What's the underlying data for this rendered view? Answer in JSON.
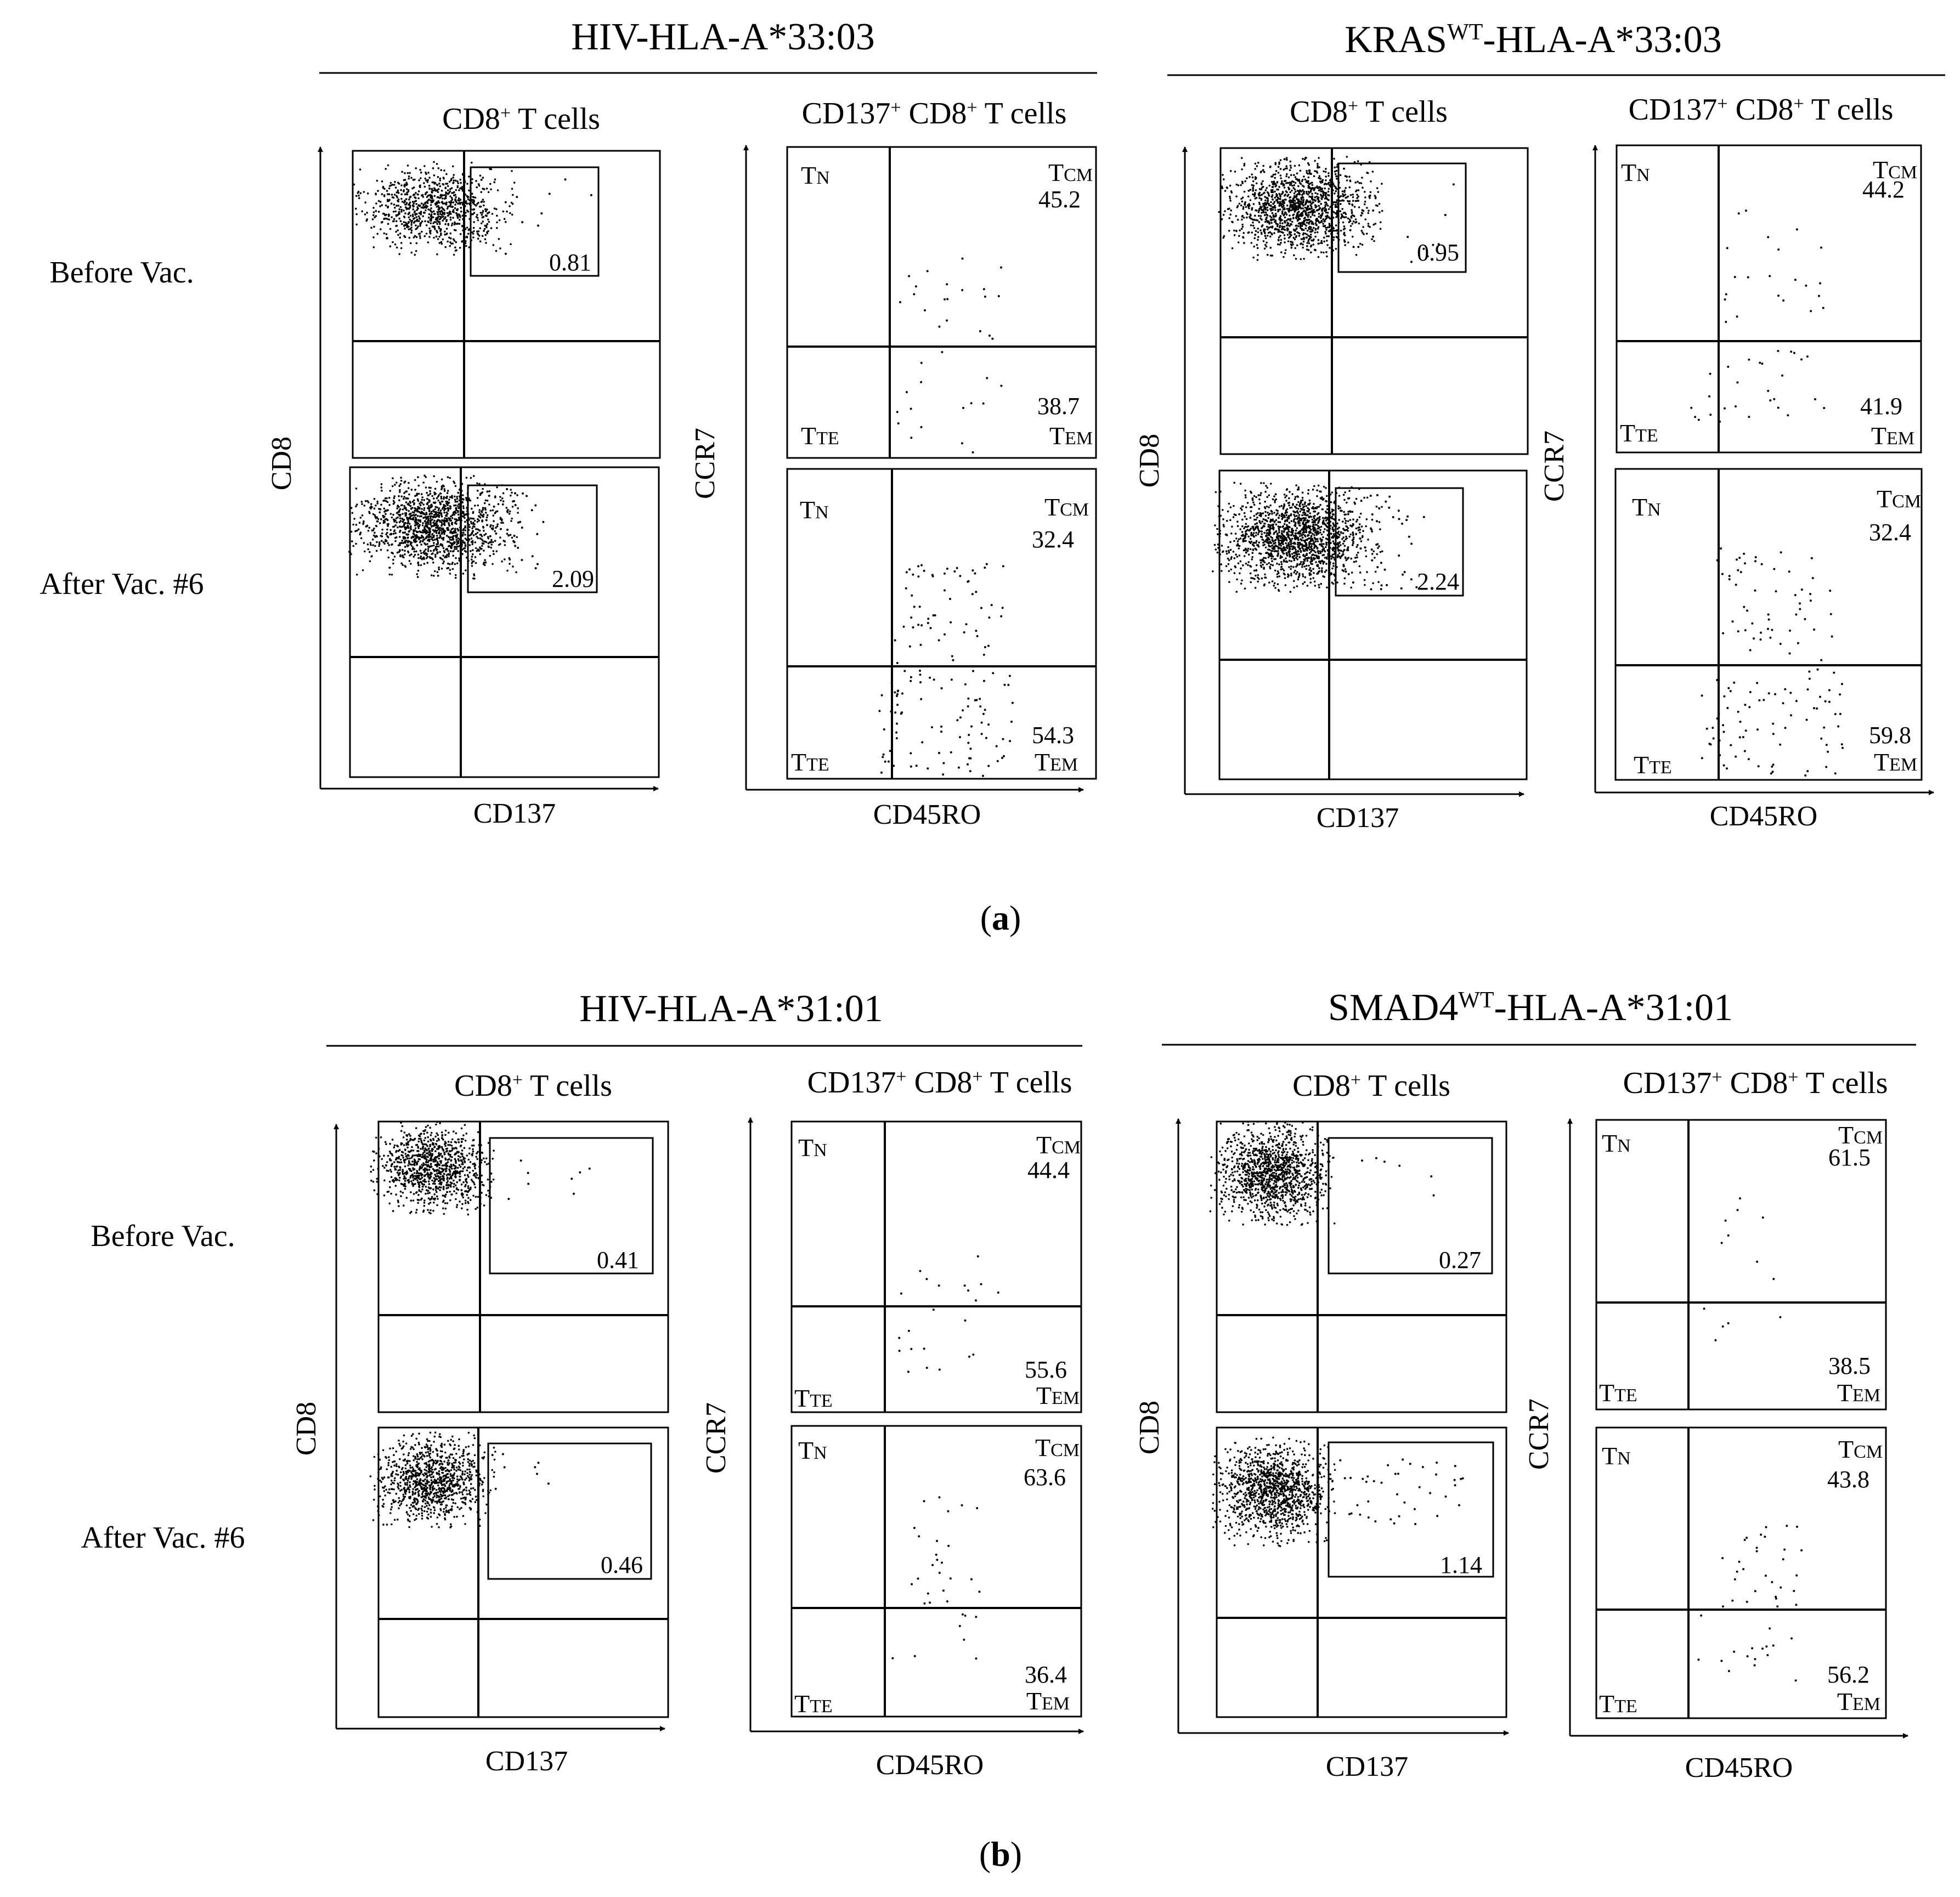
{
  "figure": {
    "captions": {
      "a": "a",
      "b": "b"
    }
  },
  "row_labels": [
    "Before Vac.",
    "After Vac. #6"
  ],
  "chart_data": [
    {
      "panel": "a",
      "type": "scatter",
      "title": "HIV-HLA-A*33:03",
      "left_title": {
        "main": "CD8",
        "sup": "+",
        "rest": " T cells"
      },
      "right_title": {
        "a": "CD137",
        "s1": "+",
        "b": " CD8",
        "s2": "+",
        "c": " T cells"
      },
      "left_xlabel": "CD137",
      "left_ylabel": "CD8",
      "right_xlabel": "CD45RO",
      "right_ylabel": "CCR7",
      "rows": [
        {
          "label": "Before Vac.",
          "gate_value": "0.81",
          "tcm_value": "45.2",
          "tem_value": "38.7"
        },
        {
          "label": "After Vac. #6",
          "gate_value": "2.09",
          "tcm_value": "32.4",
          "tem_value": "54.3"
        }
      ],
      "quadrant_labels": {
        "tn": [
          "T",
          "N"
        ],
        "tcm": [
          "T",
          "CM"
        ],
        "tte": [
          "T",
          "TE"
        ],
        "tem": [
          "T",
          "EM"
        ]
      }
    },
    {
      "panel": "a",
      "type": "scatter",
      "title": {
        "a": "KRAS",
        "sup": "WT",
        "b": "-HLA-A*33:03"
      },
      "left_title": {
        "main": "CD8",
        "sup": "+",
        "rest": " T cells"
      },
      "right_title": {
        "a": "CD137",
        "s1": "+",
        "b": " CD8",
        "s2": "+",
        "c": " T cells"
      },
      "left_xlabel": "CD137",
      "left_ylabel": "CD8",
      "right_xlabel": "CD45RO",
      "right_ylabel": "CCR7",
      "rows": [
        {
          "label": "Before Vac.",
          "gate_value": "0.95",
          "tcm_value": "44.2",
          "tem_value": "41.9"
        },
        {
          "label": "After Vac. #6",
          "gate_value": "2.24",
          "tcm_value": "32.4",
          "tem_value": "59.8"
        }
      ],
      "quadrant_labels": {
        "tn": [
          "T",
          "N"
        ],
        "tcm": [
          "T",
          "CM"
        ],
        "tte": [
          "T",
          "TE"
        ],
        "tem": [
          "T",
          "EM"
        ]
      }
    },
    {
      "panel": "b",
      "type": "scatter",
      "title": "HIV-HLA-A*31:01",
      "left_title": {
        "main": "CD8",
        "sup": "+",
        "rest": " T cells"
      },
      "right_title": {
        "a": "CD137",
        "s1": "+",
        "b": " CD8",
        "s2": "+",
        "c": " T cells"
      },
      "left_xlabel": "CD137",
      "left_ylabel": "CD8",
      "right_xlabel": "CD45RO",
      "right_ylabel": "CCR7",
      "rows": [
        {
          "label": "Before Vac.",
          "gate_value": "0.41",
          "tcm_value": "44.4",
          "tem_value": "55.6"
        },
        {
          "label": "After Vac. #6",
          "gate_value": "0.46",
          "tcm_value": "63.6",
          "tem_value": "36.4"
        }
      ],
      "quadrant_labels": {
        "tn": [
          "T",
          "N"
        ],
        "tcm": [
          "T",
          "CM"
        ],
        "tte": [
          "T",
          "TE"
        ],
        "tem": [
          "T",
          "EM"
        ]
      }
    },
    {
      "panel": "b",
      "type": "scatter",
      "title": {
        "a": "SMAD4",
        "sup": "WT",
        "b": "-HLA-A*31:01"
      },
      "left_title": {
        "main": "CD8",
        "sup": "+",
        "rest": " T cells"
      },
      "right_title": {
        "a": "CD137",
        "s1": "+",
        "b": " CD8",
        "s2": "+",
        "c": " T cells"
      },
      "left_xlabel": "CD137",
      "left_ylabel": "CD8",
      "right_xlabel": "CD45RO",
      "right_ylabel": "CCR7",
      "rows": [
        {
          "label": "Before Vac.",
          "gate_value": "0.27",
          "tcm_value": "61.5",
          "tem_value": "38.5"
        },
        {
          "label": "After Vac. #6",
          "gate_value": "1.14",
          "tcm_value": "43.8",
          "tem_value": "56.2"
        }
      ],
      "quadrant_labels": {
        "tn": [
          "T",
          "N"
        ],
        "tcm": [
          "T",
          "CM"
        ],
        "tte": [
          "T",
          "TE"
        ],
        "tem": [
          "T",
          "EM"
        ]
      }
    }
  ]
}
